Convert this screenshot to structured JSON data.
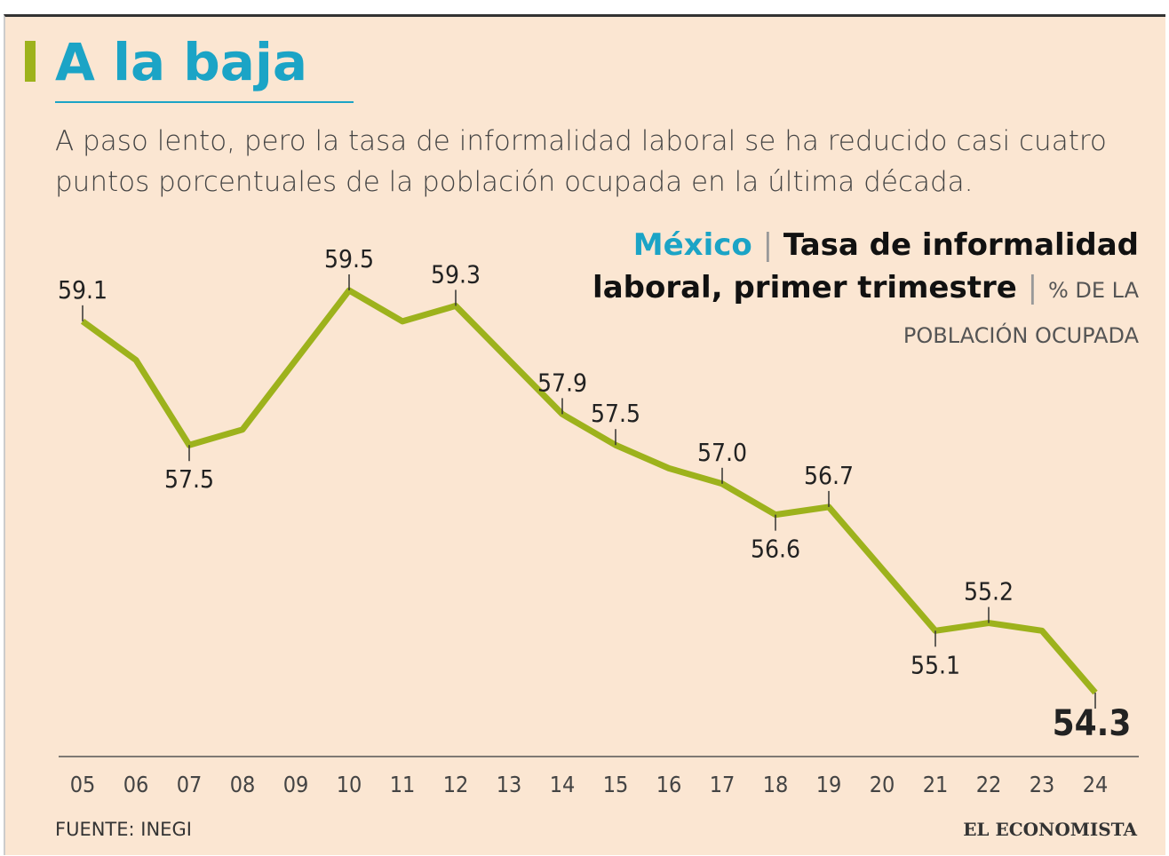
{
  "chart_data": {
    "type": "line",
    "title": "A la baja",
    "subtitle": "A paso lento, pero la tasa de informalidad laboral se ha reducido casi cuatro puntos porcentuales de la población ocupada en la última década.",
    "caption_region": "México",
    "caption_title": "Tasa de informalidad laboral, primer trimestre",
    "caption_unit": "% DE LA POBLACIÓN OCUPADA",
    "categories": [
      "05",
      "06",
      "07",
      "08",
      "09",
      "10",
      "11",
      "12",
      "13",
      "14",
      "15",
      "16",
      "17",
      "18",
      "19",
      "20",
      "21",
      "22",
      "23",
      "24"
    ],
    "series": [
      {
        "name": "Tasa de informalidad laboral",
        "color": "#9db21c",
        "values": [
          59.1,
          58.6,
          57.5,
          57.7,
          58.6,
          59.5,
          59.1,
          59.3,
          58.6,
          57.9,
          57.5,
          57.2,
          57.0,
          56.6,
          56.7,
          55.9,
          55.1,
          55.2,
          55.1,
          54.3
        ],
        "value_labels": [
          "59.1",
          null,
          "57.5",
          null,
          null,
          "59.5",
          null,
          "59.3",
          null,
          "57.9",
          "57.5",
          null,
          "57.0",
          "56.6",
          "56.7",
          null,
          "55.1",
          "55.2",
          null,
          "54.3"
        ]
      }
    ],
    "source": "FUENTE: INEGI",
    "brand": "EL ECONOMISTA"
  }
}
